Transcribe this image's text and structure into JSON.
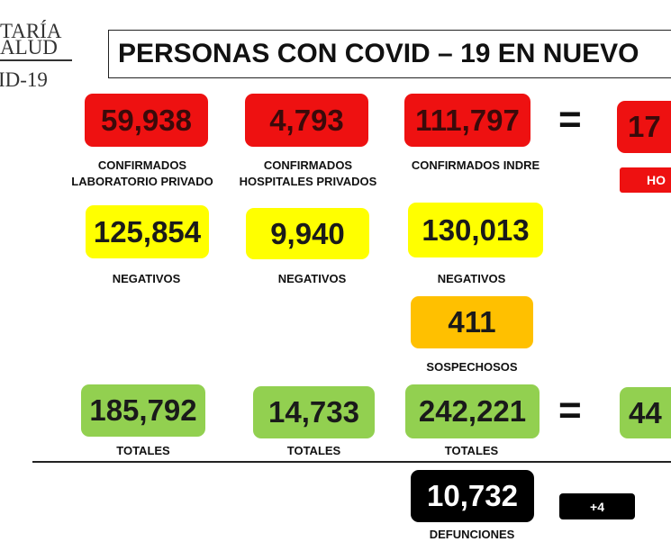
{
  "header": {
    "logo": [
      "TARÍA",
      "ALUD",
      "ID-19"
    ],
    "title": "PERSONAS CON COVID – 19 EN NUEVO"
  },
  "confirmados": [
    {
      "value": "59,938",
      "label": [
        "CONFIRMADOS",
        "LABORATORIO PRIVADO"
      ]
    },
    {
      "value": "4,793",
      "label": [
        "CONFIRMADOS",
        "HOSPITALES PRIVADOS"
      ]
    },
    {
      "value": "111,797",
      "label": [
        "CONFIRMADOS INDRE"
      ]
    },
    {
      "value": "17",
      "label": [
        "HO"
      ]
    }
  ],
  "negativos": [
    {
      "value": "125,854",
      "label": "NEGATIVOS"
    },
    {
      "value": "9,940",
      "label": "NEGATIVOS"
    },
    {
      "value": "130,013",
      "label": "NEGATIVOS"
    }
  ],
  "sospechosos": {
    "value": "411",
    "label": "SOSPECHOSOS"
  },
  "totales": [
    {
      "value": "185,792",
      "label": "TOTALES"
    },
    {
      "value": "14,733",
      "label": "TOTALES"
    },
    {
      "value": "242,221",
      "label": "TOTALES"
    },
    {
      "value": "44"
    }
  ],
  "equals": "=",
  "defunciones": {
    "value": "10,732",
    "label": "DEFUNCIONES",
    "delta": "+4"
  }
}
